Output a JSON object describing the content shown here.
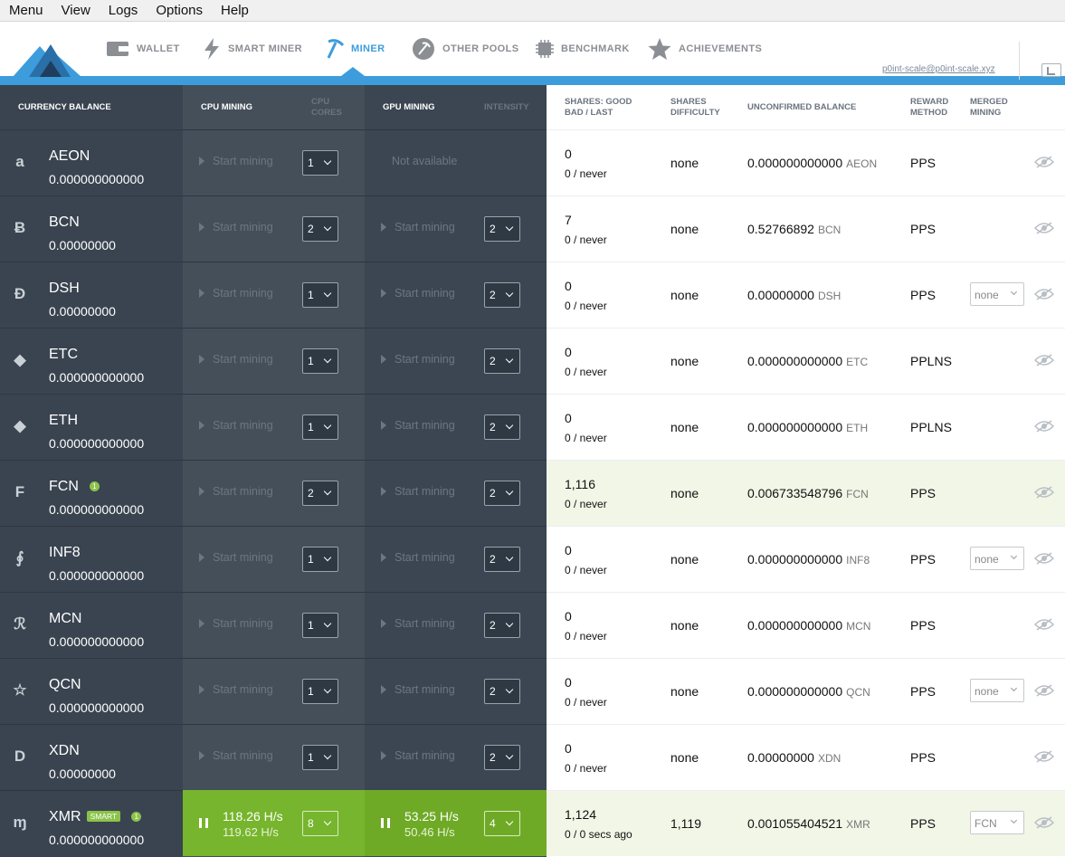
{
  "menubar": {
    "items": [
      "Menu",
      "View",
      "Logs",
      "Options",
      "Help"
    ]
  },
  "nav": {
    "items": [
      {
        "label": "WALLET",
        "icon": "wallet-icon"
      },
      {
        "label": "SMART MINER",
        "icon": "lightning-icon"
      },
      {
        "label": "MINER",
        "icon": "pickaxe-icon",
        "active": true
      },
      {
        "label": "OTHER POOLS",
        "icon": "pickaxe-circle-icon"
      },
      {
        "label": "BENCHMARK",
        "icon": "chip-icon"
      },
      {
        "label": "ACHIEVEMENTS",
        "icon": "star-icon"
      }
    ],
    "account": "p0int-scale@p0int-scale.xyz"
  },
  "headers": {
    "balance": "CURRENCY BALANCE",
    "cpu": "CPU MINING",
    "cpu_cores": "CPU CORES",
    "gpu": "GPU MINING",
    "intensity": "INTENSITY",
    "shares": "SHARES: GOOD BAD / LAST",
    "difficulty": "SHARES DIFFICULTY",
    "unconfirmed": "UNCONFIRMED BALANCE",
    "reward": "REWARD METHOD",
    "merged": "MERGED MINING"
  },
  "start_label": "Start mining",
  "not_available": "Not available",
  "rows": [
    {
      "ticker": "AEON",
      "balance": "0.000000000000",
      "icon": "a",
      "cores": "1",
      "gpu_available": false,
      "intensity": "",
      "good": "0",
      "bad": "0 / never",
      "difficulty": "none",
      "unconfirmed": "0.000000000000",
      "unit": "AEON",
      "reward": "PPS",
      "merged": ""
    },
    {
      "ticker": "BCN",
      "balance": "0.00000000",
      "icon": "Ƀ",
      "cores": "2",
      "intensity": "2",
      "good": "7",
      "bad": "0 / never",
      "difficulty": "none",
      "unconfirmed": "0.52766892",
      "unit": "BCN",
      "reward": "PPS",
      "merged": ""
    },
    {
      "ticker": "DSH",
      "balance": "0.00000000",
      "icon": "Đ",
      "cores": "1",
      "intensity": "2",
      "good": "0",
      "bad": "0 / never",
      "difficulty": "none",
      "unconfirmed": "0.00000000",
      "unit": "DSH",
      "reward": "PPS",
      "merged": "none"
    },
    {
      "ticker": "ETC",
      "balance": "0.000000000000",
      "icon": "◆",
      "cores": "1",
      "intensity": "2",
      "good": "0",
      "bad": "0 / never",
      "difficulty": "none",
      "unconfirmed": "0.000000000000",
      "unit": "ETC",
      "reward": "PPLNS",
      "merged": ""
    },
    {
      "ticker": "ETH",
      "balance": "0.000000000000",
      "icon": "◆",
      "cores": "1",
      "intensity": "2",
      "good": "0",
      "bad": "0 / never",
      "difficulty": "none",
      "unconfirmed": "0.000000000000",
      "unit": "ETH",
      "reward": "PPLNS",
      "merged": ""
    },
    {
      "ticker": "FCN",
      "balance": "0.000000000000",
      "icon": "F",
      "badge": "1",
      "cores": "2",
      "intensity": "2",
      "good": "1,116",
      "bad": "0 / never",
      "difficulty": "none",
      "unconfirmed": "0.006733548796",
      "unit": "FCN",
      "reward": "PPS",
      "merged": "",
      "highlight": true
    },
    {
      "ticker": "INF8",
      "balance": "0.000000000000",
      "icon": "∮",
      "cores": "1",
      "intensity": "2",
      "good": "0",
      "bad": "0 / never",
      "difficulty": "none",
      "unconfirmed": "0.000000000000",
      "unit": "INF8",
      "reward": "PPS",
      "merged": "none"
    },
    {
      "ticker": "MCN",
      "balance": "0.000000000000",
      "icon": "ℛ",
      "cores": "1",
      "intensity": "2",
      "good": "0",
      "bad": "0 / never",
      "difficulty": "none",
      "unconfirmed": "0.000000000000",
      "unit": "MCN",
      "reward": "PPS",
      "merged": ""
    },
    {
      "ticker": "QCN",
      "balance": "0.000000000000",
      "icon": "☆",
      "cores": "1",
      "intensity": "2",
      "good": "0",
      "bad": "0 / never",
      "difficulty": "none",
      "unconfirmed": "0.000000000000",
      "unit": "QCN",
      "reward": "PPS",
      "merged": "none"
    },
    {
      "ticker": "XDN",
      "balance": "0.00000000",
      "icon": "D",
      "cores": "1",
      "intensity": "2",
      "good": "0",
      "bad": "0 / never",
      "difficulty": "none",
      "unconfirmed": "0.00000000",
      "unit": "XDN",
      "reward": "PPS",
      "merged": ""
    },
    {
      "ticker": "XMR",
      "balance": "0.000000000000",
      "icon": "ɱ",
      "badge": "1",
      "smart": "SMART",
      "cores": "8",
      "intensity": "4",
      "good": "1,124",
      "bad": "0 / 0 secs ago",
      "difficulty": "1,119",
      "unconfirmed": "0.001055404521",
      "unit": "XMR",
      "reward": "PPS",
      "merged": "FCN",
      "highlight": true,
      "active": true,
      "cpu_rate1": "118.26 H/s",
      "cpu_rate2": "119.62 H/s",
      "gpu_rate1": "53.25 H/s",
      "gpu_rate2": "50.46 H/s"
    }
  ]
}
